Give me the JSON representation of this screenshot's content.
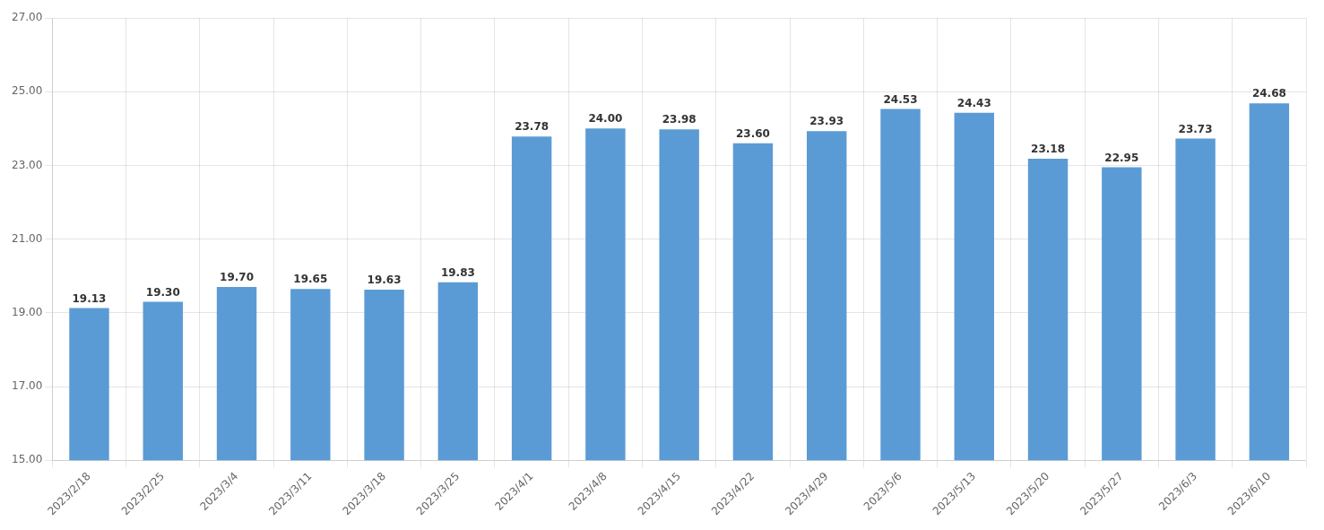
{
  "chart_data": {
    "type": "bar",
    "categories": [
      "2023/2/18",
      "2023/2/25",
      "2023/3/4",
      "2023/3/11",
      "2023/3/18",
      "2023/3/25",
      "2023/4/1",
      "2023/4/8",
      "2023/4/15",
      "2023/4/22",
      "2023/4/29",
      "2023/5/6",
      "2023/5/13",
      "2023/5/20",
      "2023/5/27",
      "2023/6/3",
      "2023/6/10"
    ],
    "values": [
      19.13,
      19.3,
      19.7,
      19.65,
      19.63,
      19.83,
      23.78,
      24.0,
      23.98,
      23.6,
      23.93,
      24.53,
      24.43,
      23.18,
      22.95,
      23.73,
      24.68
    ],
    "value_labels": [
      "19.13",
      "19.30",
      "19.70",
      "19.65",
      "19.63",
      "19.83",
      "23.78",
      "24.00",
      "23.98",
      "23.60",
      "23.93",
      "24.53",
      "24.43",
      "23.18",
      "22.95",
      "23.73",
      "24.68"
    ],
    "color": "#5B9BD5",
    "ylim": [
      15.0,
      27.0
    ],
    "yticks": [
      {
        "value": 15.0,
        "label": "15.00"
      },
      {
        "value": 17.0,
        "label": "17.00"
      },
      {
        "value": 19.0,
        "label": "19.00"
      },
      {
        "value": 21.0,
        "label": "21.00"
      },
      {
        "value": 23.0,
        "label": "23.00"
      },
      {
        "value": 25.0,
        "label": "25.00"
      },
      {
        "value": 27.0,
        "label": "27.00"
      }
    ],
    "grid": true,
    "data_labels": true
  }
}
